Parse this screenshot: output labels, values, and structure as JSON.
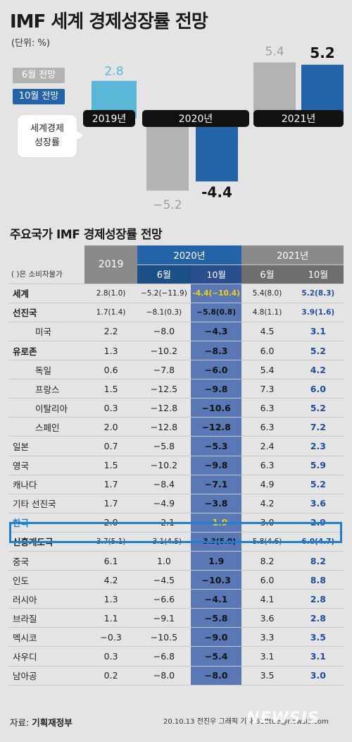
{
  "title": "IMF 세계 경제성장률 전망",
  "unit": "(단위: %)",
  "legend": [
    {
      "label": "6월 전망",
      "color": "#b3b3b3"
    },
    {
      "label": "10월 전망",
      "color": "#2463a8"
    }
  ],
  "callout": [
    "세계경제",
    "성장률"
  ],
  "chart_data": {
    "type": "bar",
    "title": "IMF 세계 경제성장률 전망",
    "categories": [
      "2019년",
      "2020년",
      "2021년"
    ],
    "series": [
      {
        "name": "6월 전망",
        "values": [
          null,
          -5.2,
          5.4
        ]
      },
      {
        "name": "10월 전망",
        "values": [
          null,
          -4.4,
          5.2
        ]
      }
    ],
    "actual_2019": 2.8,
    "bar_labels": {
      "2019": "2.8",
      "2020_jun": "−5.2",
      "2020_oct": "-4.4",
      "2021_jun": "5.4",
      "2021_oct": "5.2"
    },
    "colors": {
      "jun": "#b3b3b3",
      "oct": "#2463a8",
      "y2019": "#5ab7d8"
    }
  },
  "table": {
    "title": "주요국가 IMF 경제성장률 전망",
    "note": "( )은 소비자물가",
    "headers": {
      "y2019": "2019",
      "y2020": "2020년",
      "y2021": "2021년",
      "jun": "6월",
      "oct": "10월"
    },
    "rows": [
      {
        "name": "세계",
        "bold": true,
        "indent": false,
        "v2019": "2.8(1.0)",
        "v20jun": "−5.2(−11.9)",
        "v20oct": "-4.4(−10.4)",
        "v21jun": "5.4(8.0)",
        "v21oct": "5.2(8.3)"
      },
      {
        "name": "선진국",
        "bold": true,
        "indent": false,
        "v2019": "1.7(1.4)",
        "v20jun": "−8.1(0.3)",
        "v20oct": "−5.8(0.8)",
        "v21jun": "4.8(1.1)",
        "v21oct": "3.9(1.6)"
      },
      {
        "name": "미국",
        "bold": false,
        "indent": true,
        "v2019": "2.2",
        "v20jun": "−8.0",
        "v20oct": "−4.3",
        "v21jun": "4.5",
        "v21oct": "3.1"
      },
      {
        "name": "유로존",
        "bold": true,
        "indent": false,
        "v2019": "1.3",
        "v20jun": "−10.2",
        "v20oct": "−8.3",
        "v21jun": "6.0",
        "v21oct": "5.2"
      },
      {
        "name": "독일",
        "bold": false,
        "indent": true,
        "v2019": "0.6",
        "v20jun": "−7.8",
        "v20oct": "−6.0",
        "v21jun": "5.4",
        "v21oct": "4.2"
      },
      {
        "name": "프랑스",
        "bold": false,
        "indent": true,
        "v2019": "1.5",
        "v20jun": "−12.5",
        "v20oct": "−9.8",
        "v21jun": "7.3",
        "v21oct": "6.0"
      },
      {
        "name": "이탈리아",
        "bold": false,
        "indent": true,
        "v2019": "0.3",
        "v20jun": "−12.8",
        "v20oct": "−10.6",
        "v21jun": "6.3",
        "v21oct": "5.2"
      },
      {
        "name": "스페인",
        "bold": false,
        "indent": true,
        "v2019": "2.0",
        "v20jun": "−12.8",
        "v20oct": "−12.8",
        "v21jun": "6.3",
        "v21oct": "7.2"
      },
      {
        "name": "일본",
        "bold": false,
        "indent": false,
        "v2019": "0.7",
        "v20jun": "−5.8",
        "v20oct": "−5.3",
        "v21jun": "2.4",
        "v21oct": "2.3"
      },
      {
        "name": "영국",
        "bold": false,
        "indent": false,
        "v2019": "1.5",
        "v20jun": "−10.2",
        "v20oct": "−9.8",
        "v21jun": "6.3",
        "v21oct": "5.9"
      },
      {
        "name": "캐나다",
        "bold": false,
        "indent": false,
        "v2019": "1.7",
        "v20jun": "−8.4",
        "v20oct": "−7.1",
        "v21jun": "4.9",
        "v21oct": "5.2"
      },
      {
        "name": "기타 선진국",
        "bold": false,
        "indent": false,
        "v2019": "1.7",
        "v20jun": "−4.9",
        "v20oct": "−3.8",
        "v21jun": "4.2",
        "v21oct": "3.6"
      },
      {
        "name": "한국",
        "bold": false,
        "indent": false,
        "highlight": true,
        "v2019": "2.0",
        "v20jun": "−2.1",
        "v20oct": "−1.9",
        "v21jun": "3.0",
        "v21oct": "2.9"
      },
      {
        "name": "신흥개도국",
        "bold": true,
        "indent": false,
        "v2019": "3.7(5.1)",
        "v20jun": "−3.1(4.5)",
        "v20oct": "−3.3(5.0)",
        "v21jun": "5.8(4.6)",
        "v21oct": "6.0(4.7)"
      },
      {
        "name": "중국",
        "bold": false,
        "indent": false,
        "v2019": "6.1",
        "v20jun": "1.0",
        "v20oct": "1.9",
        "v21jun": "8.2",
        "v21oct": "8.2"
      },
      {
        "name": "인도",
        "bold": false,
        "indent": false,
        "v2019": "4.2",
        "v20jun": "−4.5",
        "v20oct": "−10.3",
        "v21jun": "6.0",
        "v21oct": "8.8"
      },
      {
        "name": "러시아",
        "bold": false,
        "indent": false,
        "v2019": "1.3",
        "v20jun": "−6.6",
        "v20oct": "−4.1",
        "v21jun": "4.1",
        "v21oct": "2.8"
      },
      {
        "name": "브라질",
        "bold": false,
        "indent": false,
        "v2019": "1.1",
        "v20jun": "−9.1",
        "v20oct": "−5.8",
        "v21jun": "3.6",
        "v21oct": "2.8"
      },
      {
        "name": "멕시코",
        "bold": false,
        "indent": false,
        "v2019": "−0.3",
        "v20jun": "−10.5",
        "v20oct": "−9.0",
        "v21jun": "3.3",
        "v21oct": "3.5"
      },
      {
        "name": "사우디",
        "bold": false,
        "indent": false,
        "v2019": "0.3",
        "v20jun": "−6.8",
        "v20oct": "−5.4",
        "v21jun": "3.1",
        "v21oct": "3.1"
      },
      {
        "name": "남아공",
        "bold": false,
        "indent": false,
        "v2019": "0.2",
        "v20jun": "−8.0",
        "v20oct": "−8.0",
        "v21jun": "3.5",
        "v21oct": "3.0"
      }
    ]
  },
  "source_label": "자료:",
  "source": "기획재정부",
  "credit": "20.10.13 전진우 그래픽 기자 618tue@newsis.com",
  "logo": "NEWSIS"
}
